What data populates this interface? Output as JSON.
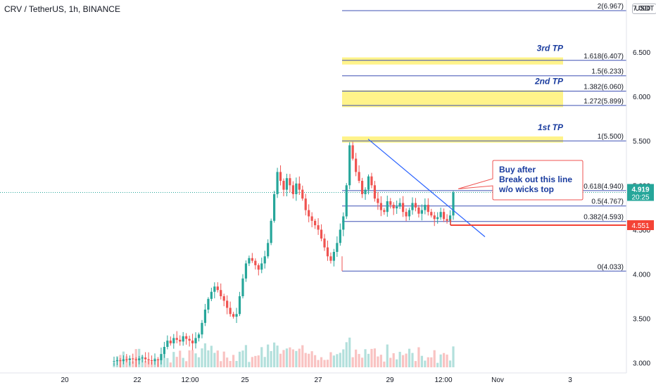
{
  "header": {
    "title": "CRV / TetherUS, 1h, BINANCE",
    "unit": "USDT"
  },
  "colors": {
    "up": "#26a69a",
    "down": "#ef5350",
    "fib_line": "#3f51b5",
    "tp_band": "#fff176",
    "trendline": "#2962ff",
    "support_line": "#f44336",
    "price_badge": "#26a69a",
    "text_blue": "#1a3c9f"
  },
  "chart_data": {
    "type": "candlestick",
    "symbol": "CRV / TetherUS",
    "interval": "1h",
    "exchange": "BINANCE",
    "ylim": [
      2.95,
      7.15
    ],
    "y_ticks": [
      "7.000",
      "6.500",
      "6.000",
      "5.500",
      "5.000",
      "4.500",
      "4.000",
      "3.500",
      "3.000"
    ],
    "x_ticks": [
      "20",
      "22",
      "12:00",
      "25",
      "27",
      "29",
      "12:00",
      "Nov",
      "3"
    ],
    "last_price": "4.919",
    "countdown": "20:25",
    "support_price": "4.551",
    "fib_levels": [
      {
        "ratio": "2",
        "price": 6.967,
        "label": "2(6.967)"
      },
      {
        "ratio": "1.618",
        "price": 6.407,
        "label": "1.618(6.407)"
      },
      {
        "ratio": "1.5",
        "price": 6.233,
        "label": "1.5(6.233)"
      },
      {
        "ratio": "1.382",
        "price": 6.06,
        "label": "1.382(6.060)"
      },
      {
        "ratio": "1.272",
        "price": 5.899,
        "label": "1.272(5.899)"
      },
      {
        "ratio": "1",
        "price": 5.5,
        "label": "1(5.500)"
      },
      {
        "ratio": "0.618",
        "price": 4.94,
        "label": "0.618(4.940)"
      },
      {
        "ratio": "0.5",
        "price": 4.767,
        "label": "0.5(4.767)"
      },
      {
        "ratio": "0.382",
        "price": 4.593,
        "label": "0.382(4.593)"
      },
      {
        "ratio": "0",
        "price": 4.033,
        "label": "0(4.033)"
      }
    ],
    "tp_zones": [
      {
        "label": "3rd TP",
        "top": 6.44,
        "bottom": 6.36
      },
      {
        "label": "2nd TP",
        "top": 6.07,
        "bottom": 5.88
      },
      {
        "label": "1st TP",
        "top": 5.55,
        "bottom": 5.48
      }
    ],
    "annotation": "Buy after\nBreak out this line\nw/o wicks top",
    "price_path": [
      3.02,
      3.03,
      3.02,
      3.04,
      3.03,
      3.05,
      3.04,
      3.03,
      3.05,
      3.06,
      3.04,
      3.03,
      3.02,
      3.04,
      3.03,
      3.1,
      3.18,
      3.25,
      3.22,
      3.28,
      3.26,
      3.24,
      3.3,
      3.27,
      3.25,
      3.22,
      3.28,
      3.32,
      3.45,
      3.6,
      3.72,
      3.8,
      3.86,
      3.82,
      3.75,
      3.7,
      3.62,
      3.55,
      3.52,
      3.55,
      3.75,
      3.95,
      4.12,
      4.18,
      4.15,
      4.1,
      4.05,
      4.12,
      4.2,
      4.35,
      4.6,
      4.9,
      5.15,
      5.05,
      4.95,
      5.08,
      5.0,
      4.9,
      5.02,
      4.95,
      4.85,
      4.72,
      4.65,
      4.6,
      4.55,
      4.5,
      4.4,
      4.3,
      4.2,
      4.15,
      4.25,
      4.35,
      4.5,
      4.65,
      5.0,
      5.45,
      5.3,
      5.15,
      5.05,
      4.9,
      4.95,
      5.1,
      5.0,
      4.85,
      4.8,
      4.72,
      4.7,
      4.82,
      4.78,
      4.74,
      4.76,
      4.8,
      4.7,
      4.65,
      4.72,
      4.8,
      4.75,
      4.68,
      4.72,
      4.78,
      4.7,
      4.66,
      4.62,
      4.64,
      4.7,
      4.62,
      4.6,
      4.66,
      4.92
    ]
  }
}
